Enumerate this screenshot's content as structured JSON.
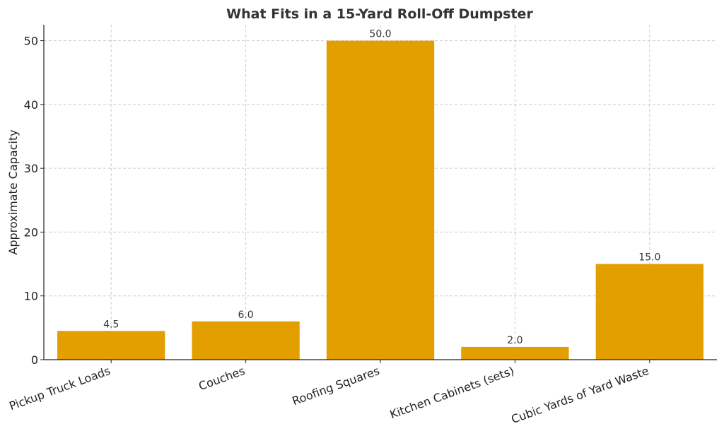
{
  "chart_data": {
    "type": "bar",
    "title": "What Fits in a 15-Yard Roll-Off Dumpster",
    "xlabel": "",
    "ylabel": "Approximate Capacity",
    "categories": [
      "Pickup Truck Loads",
      "Couches",
      "Roofing Squares",
      "Kitchen Cabinets (sets)",
      "Cubic Yards of Yard Waste"
    ],
    "values": [
      4.5,
      6.0,
      50.0,
      2.0,
      15.0
    ],
    "data_labels": [
      "4.5",
      "6.0",
      "50.0",
      "2.0",
      "15.0"
    ],
    "ylim": [
      0,
      52.5
    ],
    "yticks": [
      0,
      10,
      20,
      30,
      40,
      50
    ],
    "grid": true,
    "bar_color": "#E39F00"
  }
}
